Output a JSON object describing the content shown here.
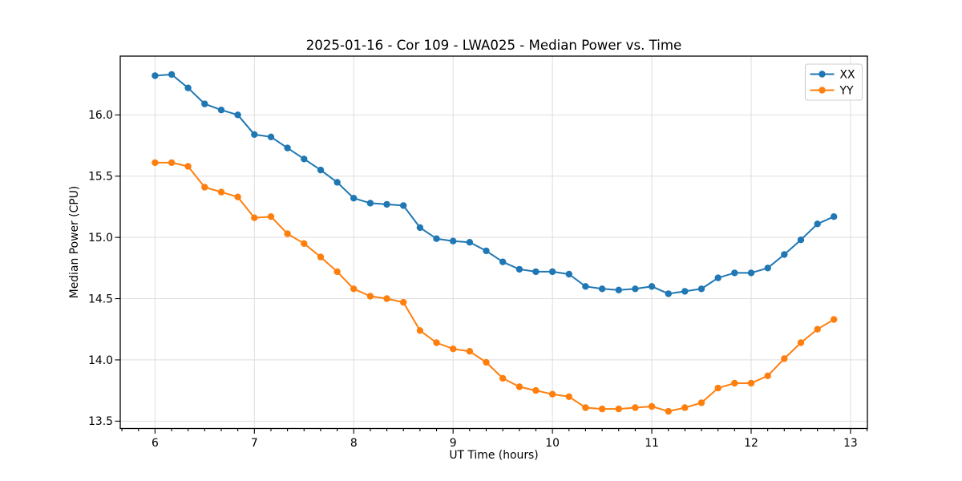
{
  "figure": {
    "background": "#ffffff"
  },
  "chart_data": {
    "type": "line",
    "title": "2025-01-16 - Cor 109 - LWA025 - Median Power vs. Time",
    "xlabel": "UT Time (hours)",
    "ylabel": "Median Power (CPU)",
    "xlim": [
      5.65,
      13.17
    ],
    "ylim": [
      13.44,
      16.48
    ],
    "xticks": [
      6,
      7,
      8,
      9,
      10,
      11,
      12,
      13
    ],
    "xtick_labels": [
      "6",
      "7",
      "8",
      "9",
      "10",
      "11",
      "12",
      "13"
    ],
    "yticks": [
      13.5,
      14.0,
      14.5,
      15.0,
      15.5,
      16.0
    ],
    "ytick_labels": [
      "13.5",
      "14.0",
      "14.5",
      "15.0",
      "15.5",
      "16.0"
    ],
    "x_minor_step": 0.1667,
    "grid": true,
    "legend": {
      "location": "upper right",
      "labels": [
        "XX",
        "YY"
      ]
    },
    "x": [
      6.0,
      6.167,
      6.333,
      6.5,
      6.667,
      6.833,
      7.0,
      7.167,
      7.333,
      7.5,
      7.667,
      7.833,
      8.0,
      8.167,
      8.333,
      8.5,
      8.667,
      8.833,
      9.0,
      9.167,
      9.333,
      9.5,
      9.667,
      9.833,
      10.0,
      10.167,
      10.333,
      10.5,
      10.667,
      10.833,
      11.0,
      11.167,
      11.333,
      11.5,
      11.667,
      11.833,
      12.0,
      12.167,
      12.333,
      12.5,
      12.667,
      12.833
    ],
    "series": [
      {
        "name": "XX",
        "color": "#1f77b4",
        "values": [
          16.32,
          16.33,
          16.22,
          16.09,
          16.04,
          16.0,
          15.84,
          15.82,
          15.73,
          15.64,
          15.55,
          15.45,
          15.32,
          15.28,
          15.27,
          15.26,
          15.08,
          14.99,
          14.97,
          14.96,
          14.89,
          14.8,
          14.74,
          14.72,
          14.72,
          14.7,
          14.6,
          14.58,
          14.57,
          14.58,
          14.6,
          14.54,
          14.56,
          14.58,
          14.67,
          14.71,
          14.71,
          14.75,
          14.86,
          14.98,
          15.11,
          15.17
        ]
      },
      {
        "name": "YY",
        "color": "#ff7f0e",
        "values": [
          15.61,
          15.61,
          15.58,
          15.41,
          15.37,
          15.33,
          15.16,
          15.17,
          15.03,
          14.95,
          14.84,
          14.72,
          14.58,
          14.52,
          14.5,
          14.47,
          14.24,
          14.14,
          14.09,
          14.07,
          13.98,
          13.85,
          13.78,
          13.75,
          13.72,
          13.7,
          13.61,
          13.6,
          13.6,
          13.61,
          13.62,
          13.58,
          13.61,
          13.65,
          13.77,
          13.81,
          13.81,
          13.87,
          14.01,
          14.14,
          14.25,
          14.33
        ]
      }
    ]
  }
}
